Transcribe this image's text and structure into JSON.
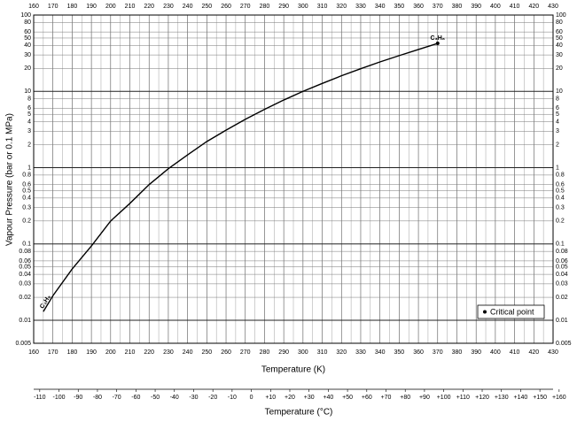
{
  "chart_data": {
    "type": "line",
    "ylabel": "Vapour Pressure (bar or 0.1 MPa)",
    "xlabel": "Temperature (K)",
    "x2label": "Temperature (°C)",
    "x": [
      165,
      170,
      180,
      190,
      200,
      210,
      220,
      230,
      240,
      250,
      260,
      270,
      280,
      290,
      300,
      310,
      320,
      330,
      340,
      350,
      360,
      370
    ],
    "series": [
      {
        "color": "#000000",
        "values": [
          0.013,
          0.021,
          0.047,
          0.094,
          0.2,
          0.34,
          0.6,
          0.97,
          1.47,
          2.2,
          3.1,
          4.3,
          5.8,
          7.7,
          10.0,
          12.7,
          16.0,
          19.8,
          24.3,
          29.4,
          35.4,
          42.5
        ]
      }
    ],
    "annotations": [
      "C₃H₈",
      "C₃H₈"
    ],
    "legend": {
      "label": "Critical point",
      "position": "lower right"
    },
    "xlim": [
      160,
      430
    ],
    "xticks": [
      160,
      170,
      180,
      190,
      200,
      210,
      220,
      230,
      240,
      250,
      260,
      270,
      280,
      290,
      300,
      310,
      320,
      330,
      340,
      350,
      360,
      370,
      380,
      390,
      400,
      410,
      420,
      430
    ],
    "x2lim": [
      -113.15,
      156.85
    ],
    "x2ticks": [
      -110,
      -100,
      -90,
      -80,
      -70,
      -60,
      -50,
      -40,
      -30,
      -20,
      -10,
      0,
      {
        "value": 10,
        "label": "+10"
      },
      {
        "value": 20,
        "label": "+20"
      },
      {
        "value": 30,
        "label": "+30"
      },
      {
        "value": 40,
        "label": "+40"
      },
      {
        "value": 50,
        "label": "+50"
      },
      {
        "value": 60,
        "label": "+60"
      },
      {
        "value": 70,
        "label": "+70"
      },
      {
        "value": 80,
        "label": "+80"
      },
      {
        "value": 90,
        "label": "+90"
      },
      {
        "value": 100,
        "label": "+100"
      },
      {
        "value": 110,
        "label": "+110"
      },
      {
        "value": 120,
        "label": "+120"
      },
      {
        "value": 130,
        "label": "+130"
      },
      {
        "value": 140,
        "label": "+140"
      },
      {
        "value": 150,
        "label": "+150"
      },
      {
        "value": 160,
        "label": "+160"
      }
    ],
    "ylim": [
      0.005,
      100
    ],
    "yscale": "log",
    "yticks": [
      0.005,
      0.01,
      0.02,
      0.03,
      0.04,
      0.05,
      0.06,
      0.08,
      0.1,
      0.2,
      0.3,
      0.4,
      0.5,
      0.6,
      0.8,
      1,
      2,
      3,
      4,
      5,
      6,
      8,
      10,
      20,
      30,
      40,
      50,
      60,
      80,
      100
    ],
    "grid": true
  }
}
